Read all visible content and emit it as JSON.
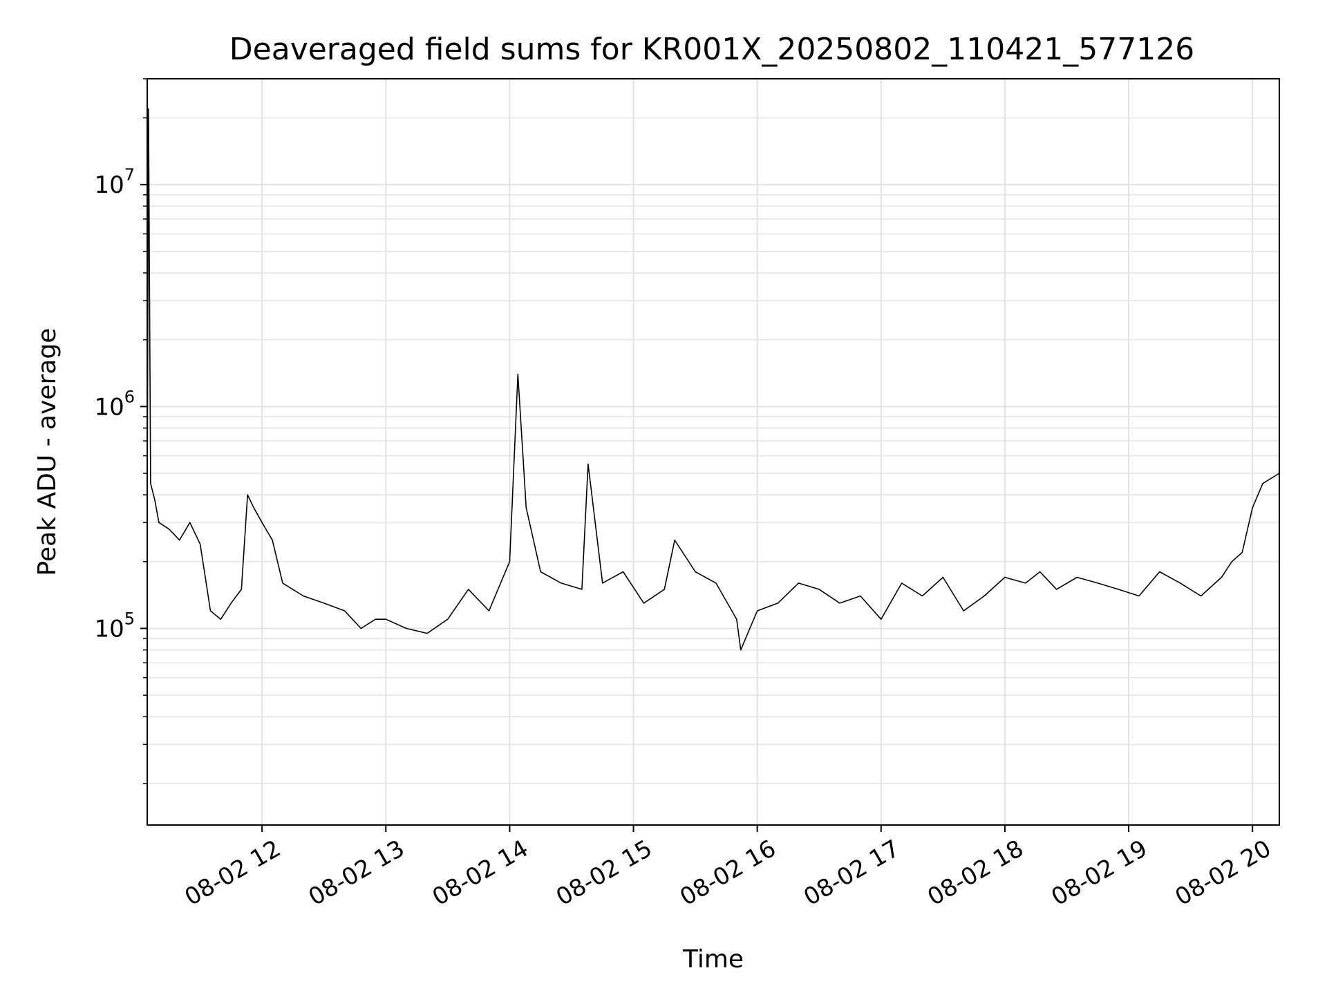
{
  "chart_data": {
    "type": "line",
    "title": "Deaveraged field sums for KR001X_20250802_110421_577126",
    "xlabel": "Time",
    "ylabel": "Peak ADU - average",
    "y_scale": "log",
    "ylim": [
      13000,
      30000000
    ],
    "xlim": [
      "2025-08-02T11:04:21",
      "2025-08-02T20:13:00"
    ],
    "x_ticks": [
      {
        "value": "2025-08-02T12:00",
        "label": "08-02 12"
      },
      {
        "value": "2025-08-02T13:00",
        "label": "08-02 13"
      },
      {
        "value": "2025-08-02T14:00",
        "label": "08-02 14"
      },
      {
        "value": "2025-08-02T15:00",
        "label": "08-02 15"
      },
      {
        "value": "2025-08-02T16:00",
        "label": "08-02 16"
      },
      {
        "value": "2025-08-02T17:00",
        "label": "08-02 17"
      },
      {
        "value": "2025-08-02T18:00",
        "label": "08-02 18"
      },
      {
        "value": "2025-08-02T19:00",
        "label": "08-02 19"
      },
      {
        "value": "2025-08-02T20:00",
        "label": "08-02 20"
      }
    ],
    "y_ticks": [
      {
        "value": 100000,
        "base": "10",
        "exp": "5"
      },
      {
        "value": 1000000,
        "base": "10",
        "exp": "6"
      },
      {
        "value": 10000000,
        "base": "10",
        "exp": "7"
      }
    ],
    "grid": true,
    "line_color": "#000000",
    "series": [
      {
        "x": [
          "2025-08-02T11:04:21",
          "2025-08-02T11:05",
          "2025-08-02T11:06",
          "2025-08-02T11:08",
          "2025-08-02T11:10",
          "2025-08-02T11:15",
          "2025-08-02T11:20",
          "2025-08-02T11:25",
          "2025-08-02T11:30",
          "2025-08-02T11:35",
          "2025-08-02T11:40",
          "2025-08-02T11:45",
          "2025-08-02T11:50",
          "2025-08-02T11:53",
          "2025-08-02T11:56",
          "2025-08-02T12:00",
          "2025-08-02T12:05",
          "2025-08-02T12:10",
          "2025-08-02T12:20",
          "2025-08-02T12:30",
          "2025-08-02T12:40",
          "2025-08-02T12:48",
          "2025-08-02T12:55",
          "2025-08-02T13:00",
          "2025-08-02T13:10",
          "2025-08-02T13:20",
          "2025-08-02T13:30",
          "2025-08-02T13:40",
          "2025-08-02T13:50",
          "2025-08-02T14:00",
          "2025-08-02T14:04",
          "2025-08-02T14:08",
          "2025-08-02T14:15",
          "2025-08-02T14:25",
          "2025-08-02T14:35",
          "2025-08-02T14:38",
          "2025-08-02T14:45",
          "2025-08-02T14:55",
          "2025-08-02T15:05",
          "2025-08-02T15:15",
          "2025-08-02T15:20",
          "2025-08-02T15:30",
          "2025-08-02T15:40",
          "2025-08-02T15:50",
          "2025-08-02T15:52",
          "2025-08-02T16:00",
          "2025-08-02T16:10",
          "2025-08-02T16:20",
          "2025-08-02T16:30",
          "2025-08-02T16:40",
          "2025-08-02T16:50",
          "2025-08-02T17:00",
          "2025-08-02T17:10",
          "2025-08-02T17:20",
          "2025-08-02T17:30",
          "2025-08-02T17:40",
          "2025-08-02T17:50",
          "2025-08-02T18:00",
          "2025-08-02T18:10",
          "2025-08-02T18:17",
          "2025-08-02T18:25",
          "2025-08-02T18:35",
          "2025-08-02T18:45",
          "2025-08-02T18:55",
          "2025-08-02T19:05",
          "2025-08-02T19:15",
          "2025-08-02T19:25",
          "2025-08-02T19:35",
          "2025-08-02T19:45",
          "2025-08-02T19:50",
          "2025-08-02T19:55",
          "2025-08-02T20:00",
          "2025-08-02T20:05",
          "2025-08-02T20:13"
        ],
        "y": [
          350000,
          22000000,
          450000,
          380000,
          300000,
          280000,
          250000,
          300000,
          240000,
          120000,
          110000,
          130000,
          150000,
          400000,
          350000,
          300000,
          250000,
          160000,
          140000,
          130000,
          120000,
          100000,
          110000,
          110000,
          100000,
          95000,
          110000,
          150000,
          120000,
          200000,
          1400000,
          350000,
          180000,
          160000,
          150000,
          550000,
          160000,
          180000,
          130000,
          150000,
          250000,
          180000,
          160000,
          110000,
          80000,
          120000,
          130000,
          160000,
          150000,
          130000,
          140000,
          110000,
          160000,
          140000,
          170000,
          120000,
          140000,
          170000,
          160000,
          180000,
          150000,
          170000,
          160000,
          150000,
          140000,
          180000,
          160000,
          140000,
          170000,
          200000,
          220000,
          350000,
          450000,
          500000
        ]
      }
    ]
  }
}
